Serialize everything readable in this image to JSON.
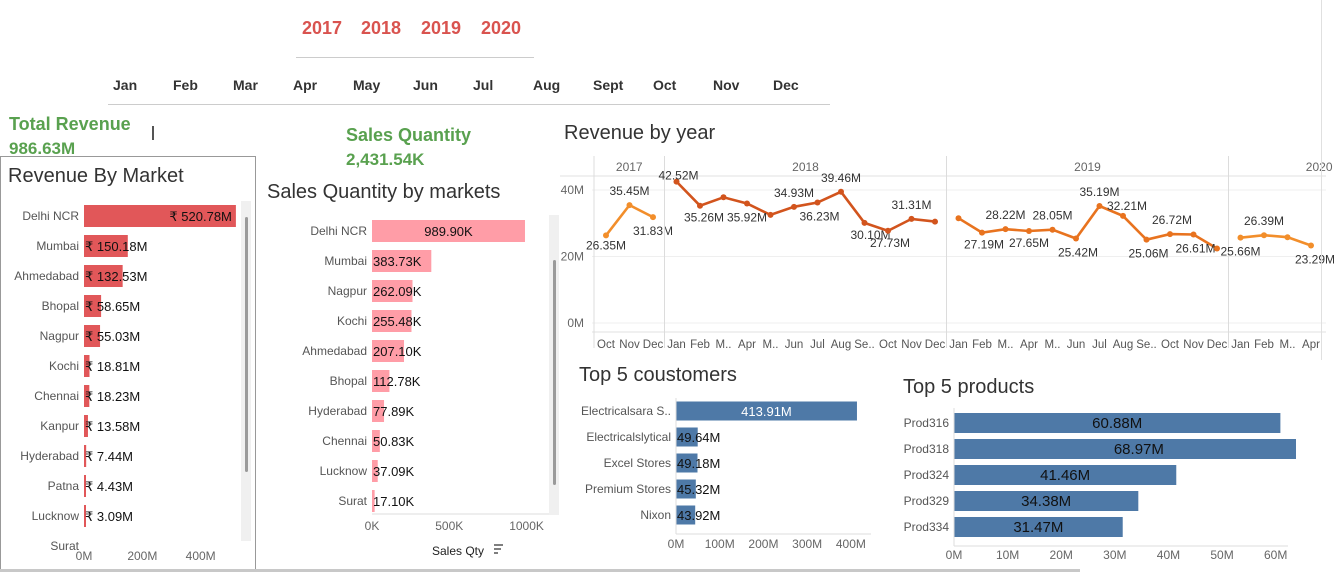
{
  "filters": {
    "years": [
      "2017",
      "2018",
      "2019",
      "2020"
    ],
    "months": [
      "Jan",
      "Feb",
      "Mar",
      "Apr",
      "May",
      "Jun",
      "Jul",
      "Aug",
      "Sept",
      "Oct",
      "Nov",
      "Dec"
    ]
  },
  "kpis": {
    "total_revenue_label": "Total Revenue",
    "total_revenue_value": "986.63M",
    "sales_qty_label": "Sales Quantity",
    "sales_qty_value": "2,431.54K"
  },
  "colors": {
    "market_bar": "#e15759",
    "qty_bar": "#ff9da7",
    "blue_bar": "#4e79a7",
    "line_2017": "#f28e2b",
    "line_2018": "#d2541d",
    "line_2019": "#e8731f",
    "line_2020": "#f28e2b",
    "kpi_green": "#59a14f",
    "year_red": "#d9534f"
  },
  "chart_data": [
    {
      "type": "bar",
      "title": "Revenue By Market",
      "orientation": "horizontal",
      "categories": [
        "Delhi NCR",
        "Mumbai",
        "Ahmedabad",
        "Bhopal",
        "Nagpur",
        "Kochi",
        "Chennai",
        "Kanpur",
        "Hyderabad",
        "Patna",
        "Lucknow",
        "Surat"
      ],
      "values": [
        520.78,
        150.18,
        132.53,
        58.65,
        55.03,
        18.81,
        18.23,
        13.58,
        7.44,
        4.43,
        3.09,
        null
      ],
      "labels": [
        "₹ 520.78M",
        "₹ 150.18M",
        "₹ 132.53M",
        "₹ 58.65M",
        "₹ 55.03M",
        "₹ 18.81M",
        "₹ 18.23M",
        "₹ 13.58M",
        "₹ 7.44M",
        "₹ 4.43M",
        "₹ 3.09M",
        ""
      ],
      "xticks": [
        "0M",
        "200M",
        "400M"
      ],
      "xlim": [
        0,
        600
      ]
    },
    {
      "type": "bar",
      "title": "Sales Quantity by markets",
      "orientation": "horizontal",
      "categories": [
        "Delhi NCR",
        "Mumbai",
        "Nagpur",
        "Kochi",
        "Ahmedabad",
        "Bhopal",
        "Hyderabad",
        "Chennai",
        "Lucknow",
        "Surat"
      ],
      "values": [
        989.9,
        383.73,
        262.09,
        255.48,
        207.1,
        112.78,
        77.89,
        50.83,
        37.09,
        17.1
      ],
      "labels": [
        "989.90K",
        "383.73K",
        "262.09K",
        "255.48K",
        "207.10K",
        "112.78K",
        "77.89K",
        "50.83K",
        "37.09K",
        "17.10K"
      ],
      "xticks": [
        "0K",
        "500K",
        "1000K"
      ],
      "xlim": [
        0,
        1100
      ],
      "xlabel": "Sales Qty"
    },
    {
      "type": "line",
      "title": "Revenue by year",
      "ylabel_ticks": [
        "0M",
        "20M",
        "40M"
      ],
      "ylim": [
        0,
        43
      ],
      "panels": [
        {
          "year": "2017",
          "months": [
            "Oct",
            "Nov",
            "Dec"
          ],
          "values": [
            26.35,
            35.45,
            31.83
          ],
          "labels": [
            "26.35M",
            "35.45M",
            "31.83M"
          ]
        },
        {
          "year": "2018",
          "months": [
            "Jan",
            "Feb",
            "M..",
            "Apr",
            "M..",
            "Jun",
            "Jul",
            "Aug",
            "Se..",
            "Oct",
            "Nov",
            "Dec"
          ],
          "values": [
            42.52,
            35.26,
            37.8,
            35.92,
            32.5,
            34.93,
            36.23,
            39.46,
            30.1,
            27.73,
            31.31,
            30.5
          ],
          "labels": [
            "42.52M",
            "35.26M",
            "",
            "35.92M",
            "",
            "34.93M",
            "36.23M",
            "39.46M",
            "30.10M",
            "27.73M",
            "31.31M",
            ""
          ]
        },
        {
          "year": "2019",
          "months": [
            "Jan",
            "Feb",
            "M..",
            "Apr",
            "M..",
            "Jun",
            "Jul",
            "Aug",
            "Se..",
            "Oct",
            "Nov",
            "Dec"
          ],
          "values": [
            31.5,
            27.19,
            28.22,
            27.65,
            28.05,
            25.42,
            35.19,
            32.21,
            25.06,
            26.72,
            26.61,
            22.4
          ],
          "labels": [
            "",
            "27.19M",
            "28.22M",
            "27.65M",
            "28.05M",
            "25.42M",
            "35.19M",
            "32.21M",
            "25.06M",
            "26.72M",
            "26.61M",
            ""
          ]
        },
        {
          "year": "2020",
          "months": [
            "Jan",
            "Feb",
            "M..",
            "Apr"
          ],
          "values": [
            25.66,
            26.39,
            25.8,
            23.29
          ],
          "labels": [
            "25.66M",
            "26.39M",
            "",
            "23.29M"
          ]
        }
      ]
    },
    {
      "type": "bar",
      "title": "Top 5 coustomers",
      "orientation": "horizontal",
      "categories": [
        "Electricalsara S..",
        "Electricalslytical",
        "Excel Stores",
        "Premium Stores",
        "Nixon"
      ],
      "values": [
        413.91,
        49.64,
        49.18,
        45.32,
        43.92
      ],
      "labels": [
        "413.91M",
        "49.64M",
        "49.18M",
        "45.32M",
        "43.92M"
      ],
      "xticks": [
        "0M",
        "100M",
        "200M",
        "300M",
        "400M"
      ],
      "xlim": [
        0,
        430
      ]
    },
    {
      "type": "bar",
      "title": "Top 5 products",
      "orientation": "horizontal",
      "categories": [
        "Prod316",
        "Prod318",
        "Prod324",
        "Prod329",
        "Prod334"
      ],
      "values": [
        60.88,
        68.97,
        41.46,
        34.38,
        31.47
      ],
      "labels": [
        "60.88M",
        "68.97M",
        "41.46M",
        "34.38M",
        "31.47M"
      ],
      "xticks": [
        "0M",
        "10M",
        "20M",
        "30M",
        "40M",
        "50M",
        "60M",
        "70M"
      ],
      "xlim": [
        0,
        72
      ]
    }
  ]
}
